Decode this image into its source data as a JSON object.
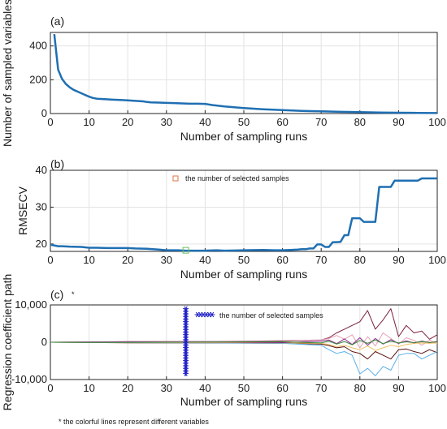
{
  "footnote": "* the colorful lines represent different variables",
  "chart_data": [
    {
      "panel_label": "(a)",
      "type": "line",
      "xlabel": "Number of sampling runs",
      "ylabel": "Number of sampled variables",
      "xlim": [
        0,
        100
      ],
      "ylim": [
        0,
        480
      ],
      "xticks": [
        "0",
        "10",
        "20",
        "30",
        "40",
        "50",
        "60",
        "70",
        "80",
        "90",
        "100"
      ],
      "yticks": [
        "0",
        "200",
        "400"
      ],
      "grid": true,
      "series": [
        {
          "color": "#1f6fb2",
          "x": [
            1,
            2,
            3,
            4,
            5,
            6,
            7,
            8,
            9,
            10,
            11,
            12,
            14,
            16,
            18,
            20,
            22,
            24,
            25,
            26,
            28,
            30,
            32,
            34,
            36,
            38,
            40,
            42,
            45,
            50,
            55,
            60,
            65,
            70,
            75,
            80,
            85,
            90,
            95,
            100
          ],
          "y": [
            470,
            260,
            205,
            175,
            155,
            140,
            130,
            120,
            110,
            100,
            92,
            88,
            85,
            82,
            80,
            78,
            75,
            72,
            68,
            66,
            65,
            63,
            62,
            60,
            58,
            58,
            57,
            50,
            42,
            32,
            25,
            20,
            16,
            13,
            10,
            8,
            6,
            5,
            4,
            3
          ]
        }
      ]
    },
    {
      "panel_label": "(b)",
      "type": "line",
      "xlabel": "Number of sampling runs",
      "ylabel": "RMSECV",
      "xlim": [
        0,
        100
      ],
      "ylim": [
        18,
        40
      ],
      "xticks": [
        "0",
        "10",
        "20",
        "30",
        "40",
        "50",
        "60",
        "70",
        "80",
        "90",
        "100"
      ],
      "yticks": [
        "20",
        "30",
        "40"
      ],
      "grid": true,
      "legend": "the number of selected samples",
      "marker": {
        "x": 35,
        "y": 18.3,
        "color": "#6bbf59"
      },
      "legend_marker_color": "#e0744a",
      "series": [
        {
          "color": "#1f6fb2",
          "x": [
            0,
            1,
            2,
            3,
            5,
            8,
            10,
            12,
            15,
            20,
            22,
            25,
            28,
            30,
            33,
            35,
            38,
            40,
            43,
            45,
            50,
            55,
            58,
            60,
            62,
            64,
            65,
            66,
            67,
            68,
            69,
            70,
            71,
            72,
            73,
            74,
            75,
            76,
            77,
            78,
            79,
            80,
            81,
            82,
            83,
            84,
            85,
            86,
            87,
            88,
            89,
            90,
            91,
            92,
            93,
            94,
            95,
            96,
            97,
            98,
            99,
            100
          ],
          "y": [
            19.8,
            19.6,
            19.4,
            19.4,
            19.3,
            19.2,
            19.0,
            19.0,
            18.9,
            18.9,
            18.8,
            18.7,
            18.5,
            18.3,
            18.3,
            18.2,
            18.2,
            18.2,
            18.3,
            18.2,
            18.3,
            18.4,
            18.3,
            18.3,
            18.4,
            18.5,
            18.6,
            18.6,
            18.8,
            18.8,
            19.9,
            19.9,
            19.2,
            19.2,
            20.5,
            20.5,
            20.6,
            22.4,
            22.4,
            27.0,
            27.0,
            27.0,
            26.0,
            26.0,
            26.0,
            26.0,
            35.5,
            35.5,
            35.5,
            35.5,
            37.2,
            37.2,
            37.2,
            37.2,
            37.2,
            37.2,
            37.2,
            37.8,
            37.8,
            37.8,
            37.8,
            37.8
          ]
        }
      ]
    },
    {
      "panel_label": "(c)",
      "panel_note": "*",
      "type": "line",
      "xlabel": "Number of sampling runs",
      "ylabel": "Regression coefficient path",
      "xlim": [
        0,
        100
      ],
      "ylim": [
        -10000,
        10000
      ],
      "xticks": [
        "0",
        "10",
        "20",
        "30",
        "40",
        "50",
        "60",
        "70",
        "80",
        "90",
        "100"
      ],
      "yticks": [
        "10,000",
        "0",
        "-10,000"
      ],
      "grid": true,
      "legend": "the number of selected samples",
      "vline": {
        "x": 35,
        "from": -9000,
        "to": 9000,
        "color": "#2323c8"
      },
      "series": [
        {
          "color": "#7a1f3a",
          "x": [
            0,
            20,
            40,
            60,
            70,
            72,
            74,
            76,
            78,
            80,
            82,
            84,
            86,
            88,
            90,
            92,
            94,
            96,
            98,
            100
          ],
          "y": [
            0,
            150,
            200,
            400,
            600,
            1200,
            2500,
            3500,
            4500,
            5500,
            8500,
            3500,
            6000,
            9000,
            1500,
            4500,
            2500,
            3000,
            800,
            2000
          ]
        },
        {
          "color": "#5a1010",
          "x": [
            0,
            20,
            40,
            60,
            70,
            72,
            74,
            76,
            78,
            80,
            82,
            84,
            86,
            88,
            90,
            92,
            94,
            96,
            98,
            100
          ],
          "y": [
            0,
            -150,
            -200,
            -300,
            -500,
            -900,
            -1500,
            -1200,
            -2500,
            -3000,
            -4500,
            -2500,
            -3500,
            -4500,
            -2000,
            -1800,
            -2500,
            -3000,
            -2000,
            -2800
          ]
        },
        {
          "color": "#5ab0e8",
          "x": [
            0,
            20,
            40,
            60,
            70,
            72,
            74,
            76,
            78,
            80,
            82,
            84,
            86,
            88,
            90,
            92,
            94,
            96,
            98,
            100
          ],
          "y": [
            0,
            -100,
            -150,
            -300,
            -800,
            -2000,
            -3000,
            -2500,
            -3500,
            -8500,
            -7000,
            -9000,
            -6500,
            -7500,
            -3500,
            -3000,
            -3000,
            -4500,
            -3500,
            -2500
          ]
        },
        {
          "color": "#e6a0b8",
          "x": [
            0,
            20,
            40,
            60,
            70,
            72,
            74,
            76,
            78,
            80,
            82,
            84,
            86,
            88,
            90,
            92,
            94,
            96,
            98,
            100
          ],
          "y": [
            0,
            100,
            150,
            250,
            600,
            1000,
            1800,
            800,
            2000,
            -1500,
            1500,
            -1000,
            2500,
            1000,
            -500,
            1200,
            500,
            -800,
            600,
            -400
          ]
        },
        {
          "color": "#f0c060",
          "x": [
            0,
            20,
            40,
            60,
            70,
            72,
            74,
            76,
            78,
            80,
            82,
            84,
            86,
            88,
            90,
            92,
            94,
            96,
            98,
            100
          ],
          "y": [
            0,
            -50,
            -80,
            -150,
            -300,
            -600,
            -1200,
            -800,
            -1500,
            -2000,
            -1000,
            -2200,
            -1500,
            -800,
            -1200,
            -600,
            -300,
            -200,
            -300,
            -200
          ]
        },
        {
          "color": "#8a2b8a",
          "x": [
            0,
            20,
            40,
            60,
            70,
            72,
            74,
            76,
            78,
            80,
            82,
            84,
            86,
            88,
            90,
            92,
            94,
            96,
            98,
            100
          ],
          "y": [
            0,
            80,
            60,
            -100,
            300,
            600,
            -400,
            900,
            -600,
            1200,
            -800,
            1000,
            -500,
            700,
            -300,
            400,
            -200,
            300,
            -100,
            200
          ]
        },
        {
          "color": "#3a8a3a",
          "x": [
            0,
            20,
            40,
            60,
            70,
            72,
            74,
            76,
            78,
            80,
            82,
            84,
            86,
            88,
            90,
            92,
            94,
            96,
            98,
            100
          ],
          "y": [
            0,
            -60,
            60,
            120,
            -200,
            300,
            -500,
            200,
            -700,
            500,
            -300,
            600,
            -400,
            300,
            -200,
            100,
            -100,
            150,
            -50,
            80
          ]
        }
      ]
    }
  ]
}
